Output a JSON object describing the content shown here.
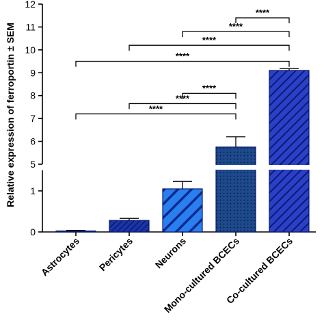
{
  "chart_data": {
    "type": "bar",
    "ylabel": "Relative expression of ferroportin ± SEM",
    "categories": [
      "Astrocytes",
      "Pericytes",
      "Neurons",
      "Mono-cultured BCECs",
      "Co-cultured BCECs"
    ],
    "values": [
      0.02,
      0.28,
      1.05,
      5.75,
      9.1
    ],
    "errors": [
      0.02,
      0.05,
      0.18,
      0.45,
      0.08
    ],
    "y_axis_broken": true,
    "y_segments": [
      {
        "range": [
          0,
          1.5
        ],
        "ticks": [
          0,
          1
        ]
      },
      {
        "range": [
          5,
          12
        ],
        "ticks": [
          5,
          6,
          7,
          8,
          9,
          10,
          11,
          12
        ]
      }
    ],
    "bar_patterns": [
      {
        "name": "solid",
        "fill": "#0b1a6e"
      },
      {
        "name": "dense-diagonal-hatch",
        "fill": "#1a35a8"
      },
      {
        "name": "wide-diagonal-stripes",
        "fill": "#1e6fe0"
      },
      {
        "name": "dotted",
        "fill": "#143a7a"
      },
      {
        "name": "diagonal-stripes-dark",
        "fill": "#1428a8"
      }
    ],
    "significance": [
      {
        "from": 2,
        "to": 3,
        "label": "****",
        "y": 8.1
      },
      {
        "from": 1,
        "to": 3,
        "label": "****",
        "y": 7.65
      },
      {
        "from": 0,
        "to": 3,
        "label": "****",
        "y": 7.2
      },
      {
        "from": 3,
        "to": 4,
        "label": "****",
        "y": 11.4
      },
      {
        "from": 2,
        "to": 4,
        "label": "****",
        "y": 10.8
      },
      {
        "from": 1,
        "to": 4,
        "label": "****",
        "y": 10.2
      },
      {
        "from": 0,
        "to": 4,
        "label": "****",
        "y": 9.5
      }
    ],
    "grid": false,
    "legend": "none"
  }
}
